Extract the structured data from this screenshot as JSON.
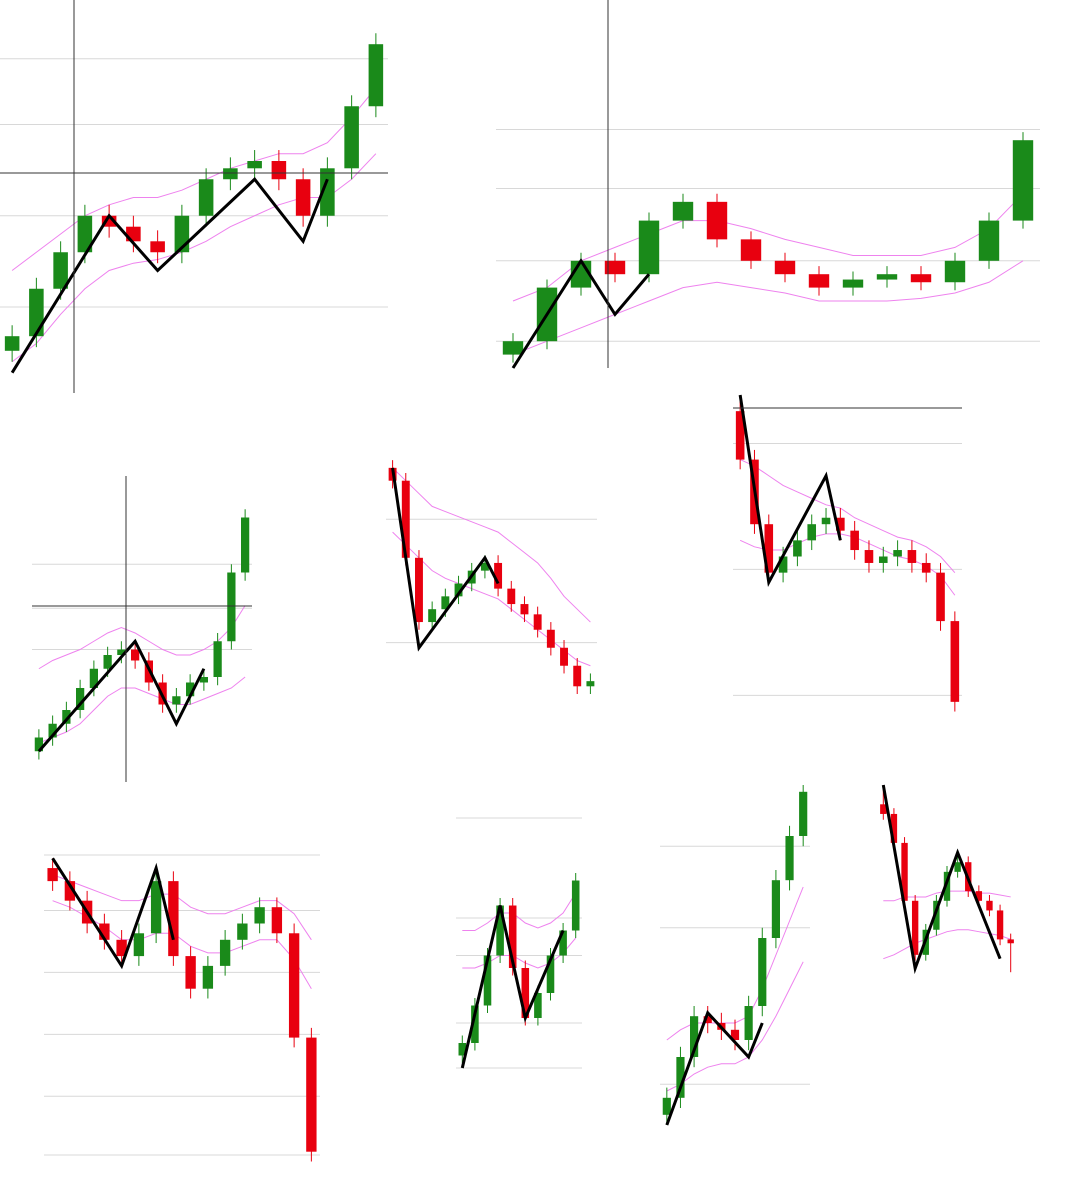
{
  "chart_data": [
    {
      "type": "candlestick",
      "up_color": "#1a8a1a",
      "down_color": "#e8000f",
      "ylim": [
        0,
        100
      ],
      "yticks": [
        20,
        45,
        70,
        88
      ],
      "grid": true,
      "open": [
        8,
        12,
        25,
        35,
        45,
        42,
        38,
        35,
        45,
        55,
        58,
        60,
        55,
        45,
        58,
        75
      ],
      "high": [
        15,
        28,
        38,
        48,
        48,
        45,
        41,
        48,
        58,
        61,
        63,
        63,
        58,
        61,
        78,
        95
      ],
      "low": [
        5,
        9,
        22,
        32,
        39,
        35,
        32,
        32,
        42,
        52,
        55,
        52,
        42,
        42,
        55,
        72
      ],
      "close": [
        12,
        25,
        35,
        45,
        42,
        38,
        35,
        45,
        55,
        58,
        60,
        55,
        45,
        58,
        75,
        92
      ],
      "bands": [
        {
          "color": "#ee82ee",
          "values": [
            30,
            35,
            40,
            45,
            48,
            50,
            50,
            52,
            55,
            58,
            60,
            62,
            62,
            65,
            72,
            80
          ]
        },
        {
          "color": "#ee82ee",
          "values": [
            5,
            10,
            18,
            25,
            30,
            32,
            33,
            35,
            38,
            42,
            45,
            48,
            50,
            50,
            55,
            62
          ]
        }
      ],
      "zigzag": {
        "color": "#000000",
        "x": [
          0,
          4,
          6,
          10,
          12,
          13
        ],
        "values": [
          2,
          45,
          30,
          55,
          38,
          55
        ]
      }
    },
    {
      "type": "candlestick",
      "up_color": "#1a8a1a",
      "down_color": "#e8000f",
      "ylim": [
        0,
        100
      ],
      "yticks": [
        10,
        40,
        67,
        89
      ],
      "grid": true,
      "open": [
        5,
        10,
        30,
        40,
        35,
        55,
        62,
        48,
        40,
        35,
        30,
        33,
        35,
        32,
        40,
        55
      ],
      "high": [
        13,
        33,
        43,
        43,
        58,
        65,
        65,
        51,
        43,
        38,
        36,
        38,
        38,
        43,
        58,
        88
      ],
      "low": [
        2,
        7,
        27,
        32,
        32,
        52,
        45,
        37,
        32,
        27,
        27,
        30,
        29,
        29,
        37,
        52
      ],
      "close": [
        10,
        30,
        40,
        35,
        55,
        62,
        48,
        40,
        35,
        30,
        33,
        35,
        32,
        40,
        55,
        85
      ],
      "bands": [
        {
          "color": "#ee82ee",
          "values": [
            25,
            30,
            40,
            45,
            50,
            55,
            55,
            52,
            48,
            45,
            42,
            42,
            42,
            45,
            52,
            65
          ]
        },
        {
          "color": "#ee82ee",
          "values": [
            5,
            10,
            15,
            20,
            25,
            30,
            32,
            30,
            28,
            25,
            25,
            25,
            26,
            28,
            32,
            40
          ]
        }
      ],
      "zigzag": {
        "color": "#000000",
        "x": [
          0,
          2,
          3,
          4
        ],
        "values": [
          0,
          40,
          20,
          35
        ]
      }
    },
    {
      "type": "candlestick",
      "up_color": "#1a8a1a",
      "down_color": "#e8000f",
      "ylim": [
        0,
        100
      ],
      "yticks": [
        42,
        57,
        73
      ],
      "grid": true,
      "open": [
        5,
        10,
        15,
        20,
        28,
        35,
        40,
        42,
        38,
        30,
        22,
        25,
        30,
        32,
        45,
        70
      ],
      "high": [
        13,
        18,
        23,
        31,
        38,
        43,
        45,
        45,
        41,
        33,
        28,
        33,
        35,
        48,
        73,
        93
      ],
      "low": [
        2,
        7,
        12,
        17,
        25,
        32,
        37,
        35,
        27,
        19,
        19,
        22,
        27,
        29,
        42,
        67
      ],
      "close": [
        10,
        15,
        20,
        28,
        35,
        40,
        42,
        38,
        30,
        22,
        25,
        30,
        32,
        45,
        70,
        90
      ],
      "bands": [
        {
          "color": "#ee82ee",
          "values": [
            35,
            38,
            40,
            42,
            45,
            48,
            50,
            48,
            45,
            42,
            40,
            40,
            42,
            45,
            50,
            58
          ]
        },
        {
          "color": "#ee82ee",
          "values": [
            8,
            10,
            12,
            15,
            20,
            25,
            28,
            28,
            26,
            24,
            22,
            22,
            24,
            26,
            28,
            32
          ]
        }
      ],
      "zigzag": {
        "color": "#000000",
        "x": [
          0,
          7,
          10,
          12
        ],
        "values": [
          5,
          45,
          15,
          35
        ]
      }
    },
    {
      "type": "candlestick",
      "up_color": "#1a8a1a",
      "down_color": "#e8000f",
      "ylim": [
        0,
        100
      ],
      "yticks": [
        75,
        27
      ],
      "grid": true,
      "open": [
        95,
        90,
        60,
        35,
        40,
        45,
        50,
        55,
        58,
        48,
        42,
        38,
        32,
        25,
        18,
        10
      ],
      "high": [
        98,
        93,
        63,
        43,
        48,
        53,
        58,
        61,
        61,
        51,
        45,
        41,
        35,
        28,
        21,
        15
      ],
      "low": [
        87,
        57,
        32,
        32,
        37,
        42,
        47,
        52,
        45,
        39,
        35,
        29,
        22,
        15,
        7,
        7
      ],
      "close": [
        90,
        60,
        35,
        40,
        45,
        50,
        55,
        58,
        48,
        42,
        38,
        32,
        25,
        18,
        10,
        12
      ],
      "bands": [
        {
          "color": "#ee82ee",
          "values": [
            95,
            90,
            85,
            80,
            78,
            76,
            74,
            72,
            70,
            66,
            62,
            58,
            52,
            45,
            40,
            35
          ]
        },
        {
          "color": "#ee82ee",
          "values": [
            70,
            65,
            60,
            55,
            52,
            50,
            48,
            46,
            44,
            40,
            36,
            32,
            28,
            24,
            20,
            18
          ]
        }
      ],
      "zigzag": {
        "color": "#000000",
        "x": [
          0,
          2,
          7,
          8
        ],
        "values": [
          95,
          25,
          60,
          50
        ]
      }
    },
    {
      "type": "candlestick",
      "up_color": "#1a8a1a",
      "down_color": "#e8000f",
      "ylim": [
        0,
        100
      ],
      "yticks": [
        85,
        46,
        7
      ],
      "grid": true,
      "open": [
        95,
        80,
        60,
        45,
        50,
        55,
        60,
        62,
        58,
        52,
        48,
        50,
        52,
        48,
        45,
        30
      ],
      "high": [
        98,
        83,
        63,
        53,
        58,
        63,
        65,
        65,
        61,
        55,
        53,
        55,
        55,
        51,
        48,
        33
      ],
      "low": [
        77,
        57,
        42,
        42,
        47,
        52,
        57,
        55,
        49,
        45,
        45,
        47,
        45,
        42,
        27,
        2
      ],
      "close": [
        80,
        60,
        45,
        50,
        55,
        60,
        62,
        58,
        52,
        48,
        50,
        52,
        48,
        45,
        30,
        5
      ],
      "bands": [
        {
          "color": "#ee82ee",
          "values": [
            80,
            78,
            75,
            72,
            70,
            68,
            66,
            65,
            62,
            60,
            58,
            56,
            55,
            53,
            50,
            45
          ]
        },
        {
          "color": "#ee82ee",
          "values": [
            55,
            53,
            52,
            52,
            54,
            56,
            57,
            57,
            56,
            54,
            52,
            50,
            49,
            47,
            44,
            38
          ]
        }
      ],
      "zigzag": {
        "color": "#000000",
        "x": [
          0,
          2,
          6,
          7
        ],
        "values": [
          100,
          42,
          75,
          55
        ]
      }
    },
    {
      "type": "candlestick",
      "up_color": "#1a8a1a",
      "down_color": "#e8000f",
      "ylim": [
        0,
        100
      ],
      "yticks": [
        96,
        79,
        60,
        41,
        22,
        4
      ],
      "grid": true,
      "open": [
        92,
        88,
        82,
        75,
        70,
        65,
        72,
        88,
        65,
        55,
        62,
        70,
        75,
        80,
        72,
        40
      ],
      "high": [
        95,
        91,
        85,
        78,
        73,
        75,
        91,
        91,
        68,
        65,
        73,
        78,
        83,
        83,
        75,
        43
      ],
      "low": [
        85,
        79,
        72,
        67,
        62,
        62,
        69,
        62,
        52,
        52,
        59,
        67,
        72,
        69,
        37,
        2
      ],
      "close": [
        88,
        82,
        75,
        70,
        65,
        72,
        88,
        65,
        55,
        62,
        70,
        75,
        80,
        72,
        40,
        5
      ],
      "bands": [
        {
          "color": "#ee82ee",
          "values": [
            90,
            88,
            86,
            84,
            82,
            82,
            84,
            84,
            80,
            78,
            78,
            80,
            82,
            82,
            78,
            70
          ]
        },
        {
          "color": "#ee82ee",
          "values": [
            82,
            80,
            77,
            74,
            70,
            70,
            72,
            72,
            68,
            66,
            66,
            68,
            70,
            70,
            64,
            55
          ]
        }
      ],
      "zigzag": {
        "color": "#000000",
        "x": [
          0,
          4,
          6,
          7
        ],
        "values": [
          95,
          62,
          92,
          70
        ]
      }
    },
    {
      "type": "candlestick",
      "up_color": "#1a8a1a",
      "down_color": "#e8000f",
      "ylim": [
        0,
        100
      ],
      "yticks": [
        100,
        60,
        45,
        18,
        0
      ],
      "grid": true,
      "open": [
        5,
        10,
        25,
        45,
        65,
        40,
        20,
        30,
        45,
        55
      ],
      "high": [
        13,
        28,
        48,
        68,
        68,
        43,
        33,
        48,
        58,
        78
      ],
      "low": [
        2,
        7,
        22,
        42,
        37,
        17,
        17,
        27,
        42,
        52
      ],
      "close": [
        10,
        25,
        45,
        65,
        40,
        20,
        30,
        45,
        55,
        75
      ],
      "bands": [
        {
          "color": "#ee82ee",
          "values": [
            55,
            55,
            58,
            62,
            62,
            58,
            56,
            58,
            62,
            70
          ]
        },
        {
          "color": "#ee82ee",
          "values": [
            40,
            40,
            42,
            45,
            45,
            42,
            40,
            42,
            46,
            52
          ]
        }
      ],
      "zigzag": {
        "color": "#000000",
        "x": [
          0,
          3,
          5,
          8
        ],
        "values": [
          0,
          65,
          20,
          55
        ]
      }
    },
    {
      "type": "candlestick",
      "up_color": "#1a8a1a",
      "down_color": "#e8000f",
      "ylim": [
        0,
        100
      ],
      "yticks": [
        82,
        58,
        12
      ],
      "grid": true,
      "open": [
        3,
        8,
        20,
        32,
        30,
        28,
        25,
        35,
        55,
        72,
        85
      ],
      "high": [
        11,
        23,
        35,
        35,
        33,
        31,
        38,
        58,
        75,
        88,
        100
      ],
      "low": [
        0,
        5,
        17,
        27,
        25,
        22,
        22,
        32,
        52,
        69,
        82
      ],
      "close": [
        8,
        20,
        32,
        30,
        28,
        25,
        35,
        55,
        72,
        85,
        98
      ],
      "bands": [
        {
          "color": "#ee82ee",
          "values": [
            25,
            28,
            30,
            30,
            30,
            30,
            32,
            40,
            50,
            60,
            70
          ]
        },
        {
          "color": "#ee82ee",
          "values": [
            10,
            12,
            15,
            17,
            18,
            18,
            20,
            25,
            32,
            40,
            48
          ]
        }
      ],
      "zigzag": {
        "color": "#000000",
        "x": [
          0,
          3,
          6,
          7
        ],
        "values": [
          0,
          33,
          20,
          30
        ]
      }
    },
    {
      "type": "candlestick",
      "up_color": "#1a8a1a",
      "down_color": "#e8000f",
      "ylim": [
        0,
        100
      ],
      "grid": false,
      "open": [
        90,
        85,
        70,
        40,
        12,
        25,
        40,
        55,
        60,
        45,
        40,
        35,
        20
      ],
      "high": [
        98,
        88,
        73,
        43,
        28,
        43,
        58,
        63,
        63,
        48,
        43,
        38,
        23
      ],
      "low": [
        82,
        67,
        37,
        9,
        9,
        22,
        37,
        52,
        42,
        37,
        32,
        17,
        3
      ],
      "close": [
        85,
        70,
        40,
        12,
        25,
        40,
        55,
        60,
        45,
        40,
        35,
        20,
        18
      ],
      "bands": [
        {
          "color": "#ee82ee",
          "values": [
            40,
            40,
            42,
            42,
            42,
            44,
            45,
            45,
            45,
            44,
            44,
            43,
            42
          ]
        },
        {
          "color": "#ee82ee",
          "values": [
            10,
            12,
            15,
            18,
            20,
            22,
            24,
            25,
            25,
            24,
            23,
            22,
            20
          ]
        }
      ],
      "zigzag": {
        "color": "#000000",
        "x": [
          0,
          3,
          7,
          11
        ],
        "values": [
          100,
          5,
          65,
          10
        ]
      }
    }
  ]
}
